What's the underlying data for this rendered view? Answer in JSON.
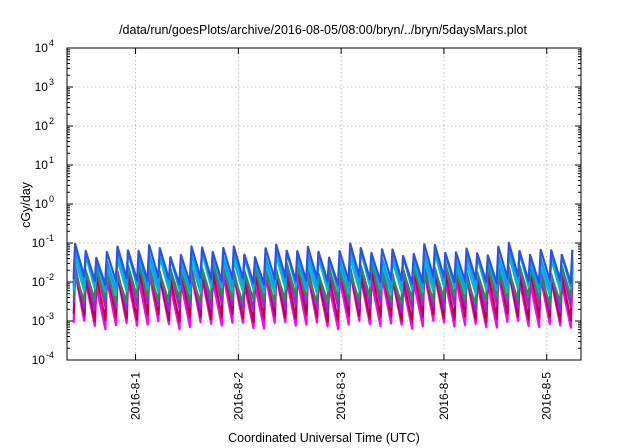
{
  "chart_data": {
    "type": "line",
    "title": "/data/run/goesPlots/archive/2016-08-05/08:00/bryn/../bryn/5daysMars.plot",
    "xlabel": "Coordinated Universal Time (UTC)",
    "ylabel": "cGy/day",
    "yscale": "log",
    "ylim": [
      0.0001,
      10000
    ],
    "y_ticks": [
      {
        "value": 0.0001,
        "base": "10",
        "exp": "-4"
      },
      {
        "value": 0.001,
        "base": "10",
        "exp": "-3"
      },
      {
        "value": 0.01,
        "base": "10",
        "exp": "-2"
      },
      {
        "value": 0.1,
        "base": "10",
        "exp": "-1"
      },
      {
        "value": 1,
        "base": "10",
        "exp": "0"
      },
      {
        "value": 10,
        "base": "10",
        "exp": "1"
      },
      {
        "value": 100,
        "base": "10",
        "exp": "2"
      },
      {
        "value": 1000,
        "base": "10",
        "exp": "3"
      },
      {
        "value": 10000,
        "base": "10",
        "exp": "4"
      }
    ],
    "x_range": [
      "2016-07-31T08:00",
      "2016-08-05T08:00"
    ],
    "x_ticks": [
      "2016-8-1",
      "2016-8-2",
      "2016-8-3",
      "2016-8-4",
      "2016-8-5"
    ],
    "grid": true,
    "period_hours": 2.47,
    "series": [
      {
        "color": "#ff00ff",
        "peak": 0.012,
        "trough": 0.0008
      },
      {
        "color": "#c0003a",
        "peak": 0.018,
        "trough": 0.0012
      },
      {
        "color": "#8a2be2",
        "peak": 0.025,
        "trough": 0.0022
      },
      {
        "color": "#2e8b57",
        "peak": 0.02,
        "trough": 0.0035
      },
      {
        "color": "#00c0c0",
        "peak": 0.04,
        "trough": 0.006
      },
      {
        "color": "#00a0ff",
        "peak": 0.05,
        "trough": 0.008
      },
      {
        "color": "#3050e0",
        "peak": 0.065,
        "trough": 0.011
      }
    ]
  }
}
